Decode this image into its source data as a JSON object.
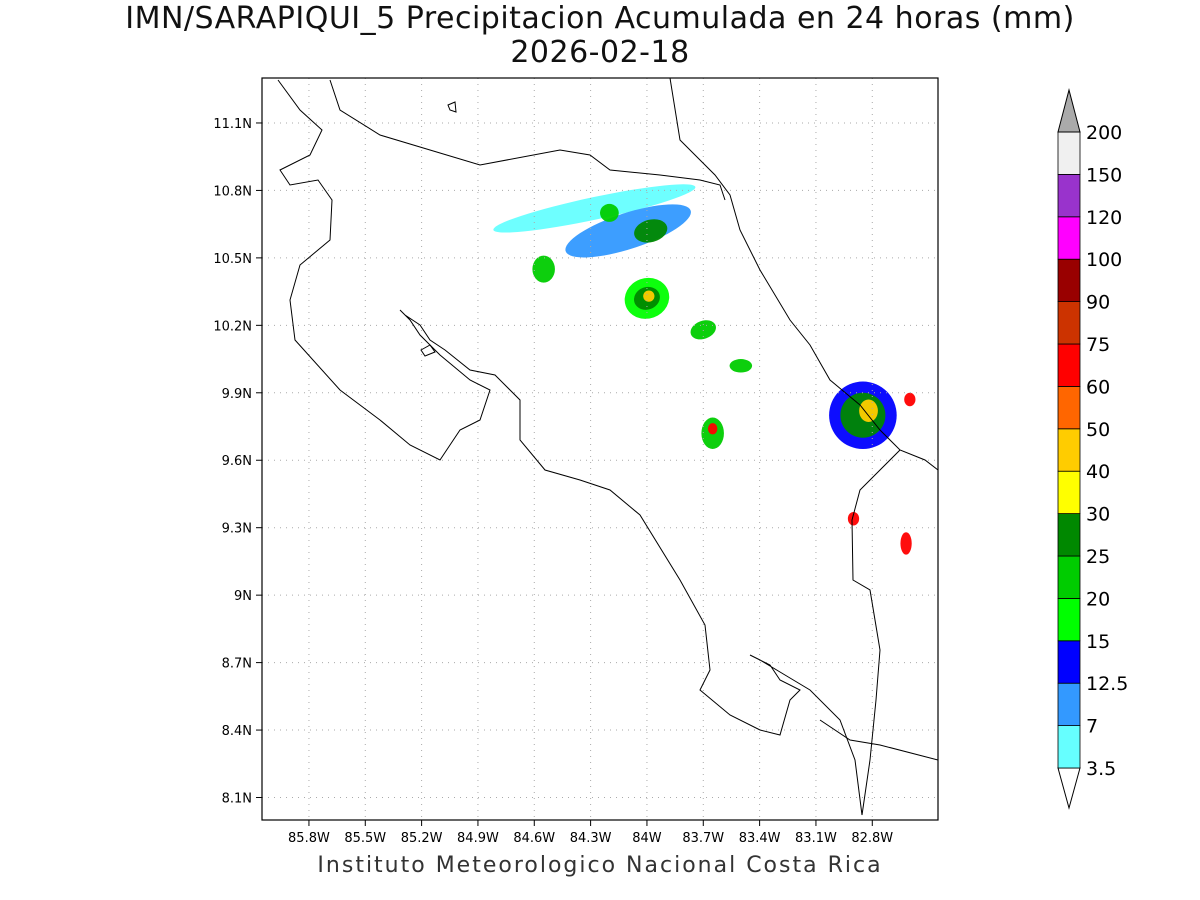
{
  "title_line1": "IMN/SARAPIQUI_5 Precipitacion Acumulada en 24 horas (mm)",
  "title_line2": "2026-02-18",
  "footer": "Instituto Meteorologico Nacional Costa Rica",
  "map": {
    "lon_range": [
      -86.05,
      -82.45
    ],
    "lat_range": [
      8.0,
      11.3
    ],
    "lon_ticks": [
      {
        "value": -85.8,
        "label": "85.8W"
      },
      {
        "value": -85.5,
        "label": "85.5W"
      },
      {
        "value": -85.2,
        "label": "85.2W"
      },
      {
        "value": -84.9,
        "label": "84.9W"
      },
      {
        "value": -84.6,
        "label": "84.6W"
      },
      {
        "value": -84.3,
        "label": "84.3W"
      },
      {
        "value": -84.0,
        "label": "84W"
      },
      {
        "value": -83.7,
        "label": "83.7W"
      },
      {
        "value": -83.4,
        "label": "83.4W"
      },
      {
        "value": -83.1,
        "label": "83.1W"
      },
      {
        "value": -82.8,
        "label": "82.8W"
      }
    ],
    "lat_ticks": [
      {
        "value": 11.1,
        "label": "11.1N"
      },
      {
        "value": 10.8,
        "label": "10.8N"
      },
      {
        "value": 10.5,
        "label": "10.5N"
      },
      {
        "value": 10.2,
        "label": "10.2N"
      },
      {
        "value": 9.9,
        "label": "9.9N"
      },
      {
        "value": 9.6,
        "label": "9.6N"
      },
      {
        "value": 9.3,
        "label": "9.3N"
      },
      {
        "value": 9.0,
        "label": "9N"
      },
      {
        "value": 8.7,
        "label": "8.7N"
      },
      {
        "value": 8.4,
        "label": "8.4N"
      },
      {
        "value": 8.1,
        "label": "8.1N"
      }
    ],
    "grid": "dotted",
    "coastline": [
      [
        -86.0,
        10.95
      ],
      [
        -85.88,
        10.98
      ],
      [
        -85.72,
        11.06
      ],
      [
        -85.7,
        11.2
      ],
      [
        -85.6,
        11.25
      ]
    ],
    "precip_cells": [
      {
        "lon": -84.28,
        "lat": 10.72,
        "rx": 0.55,
        "ry": 0.05,
        "rot": 12,
        "level": 3.5
      },
      {
        "lon": -84.1,
        "lat": 10.62,
        "rx": 0.35,
        "ry": 0.08,
        "rot": 18,
        "level": 7
      },
      {
        "lon": -84.2,
        "lat": 10.7,
        "rx": 0.05,
        "ry": 0.04,
        "rot": 0,
        "level": 20
      },
      {
        "lon": -83.98,
        "lat": 10.62,
        "rx": 0.09,
        "ry": 0.05,
        "rot": 15,
        "level": 25
      },
      {
        "lon": -84.55,
        "lat": 10.45,
        "rx": 0.06,
        "ry": 0.06,
        "rot": 0,
        "level": 20
      },
      {
        "lon": -84.0,
        "lat": 10.32,
        "rx": 0.12,
        "ry": 0.09,
        "rot": 20,
        "level": 15
      },
      {
        "lon": -84.0,
        "lat": 10.32,
        "rx": 0.07,
        "ry": 0.05,
        "rot": 20,
        "level": 25
      },
      {
        "lon": -83.99,
        "lat": 10.33,
        "rx": 0.03,
        "ry": 0.025,
        "rot": 0,
        "level": 40
      },
      {
        "lon": -83.7,
        "lat": 10.18,
        "rx": 0.07,
        "ry": 0.04,
        "rot": 20,
        "level": 20
      },
      {
        "lon": -83.5,
        "lat": 10.02,
        "rx": 0.06,
        "ry": 0.03,
        "rot": 0,
        "level": 20
      },
      {
        "lon": -83.65,
        "lat": 9.72,
        "rx": 0.06,
        "ry": 0.07,
        "rot": 0,
        "level": 20
      },
      {
        "lon": -83.65,
        "lat": 9.74,
        "rx": 0.025,
        "ry": 0.025,
        "rot": 0,
        "level": 60
      },
      {
        "lon": -82.85,
        "lat": 9.8,
        "rx": 0.18,
        "ry": 0.15,
        "rot": 0,
        "level": 12.5
      },
      {
        "lon": -82.85,
        "lat": 9.8,
        "rx": 0.12,
        "ry": 0.1,
        "rot": 0,
        "level": 25
      },
      {
        "lon": -82.82,
        "lat": 9.82,
        "rx": 0.05,
        "ry": 0.05,
        "rot": 0,
        "level": 40
      },
      {
        "lon": -82.6,
        "lat": 9.87,
        "rx": 0.03,
        "ry": 0.03,
        "rot": 0,
        "level": 60
      },
      {
        "lon": -82.9,
        "lat": 9.34,
        "rx": 0.03,
        "ry": 0.03,
        "rot": 0,
        "level": 60
      },
      {
        "lon": -82.62,
        "lat": 9.23,
        "rx": 0.03,
        "ry": 0.05,
        "rot": 0,
        "level": 60
      }
    ]
  },
  "colorbar": {
    "levels": [
      {
        "label": "3.5",
        "color": "#66ffff"
      },
      {
        "label": "7",
        "color": "#3399ff"
      },
      {
        "label": "12.5",
        "color": "#0000ff"
      },
      {
        "label": "15",
        "color": "#00ff00"
      },
      {
        "label": "20",
        "color": "#00cc00"
      },
      {
        "label": "25",
        "color": "#008800"
      },
      {
        "label": "30",
        "color": "#ffff00"
      },
      {
        "label": "40",
        "color": "#ffcc00"
      },
      {
        "label": "50",
        "color": "#ff6600"
      },
      {
        "label": "60",
        "color": "#ff0000"
      },
      {
        "label": "75",
        "color": "#cc3300"
      },
      {
        "label": "90",
        "color": "#990000"
      },
      {
        "label": "100",
        "color": "#ff00ff"
      },
      {
        "label": "120",
        "color": "#9933cc"
      },
      {
        "label": "150",
        "color": "#f0f0f0"
      },
      {
        "label": "200",
        "color": "#aaaaaa"
      }
    ]
  }
}
